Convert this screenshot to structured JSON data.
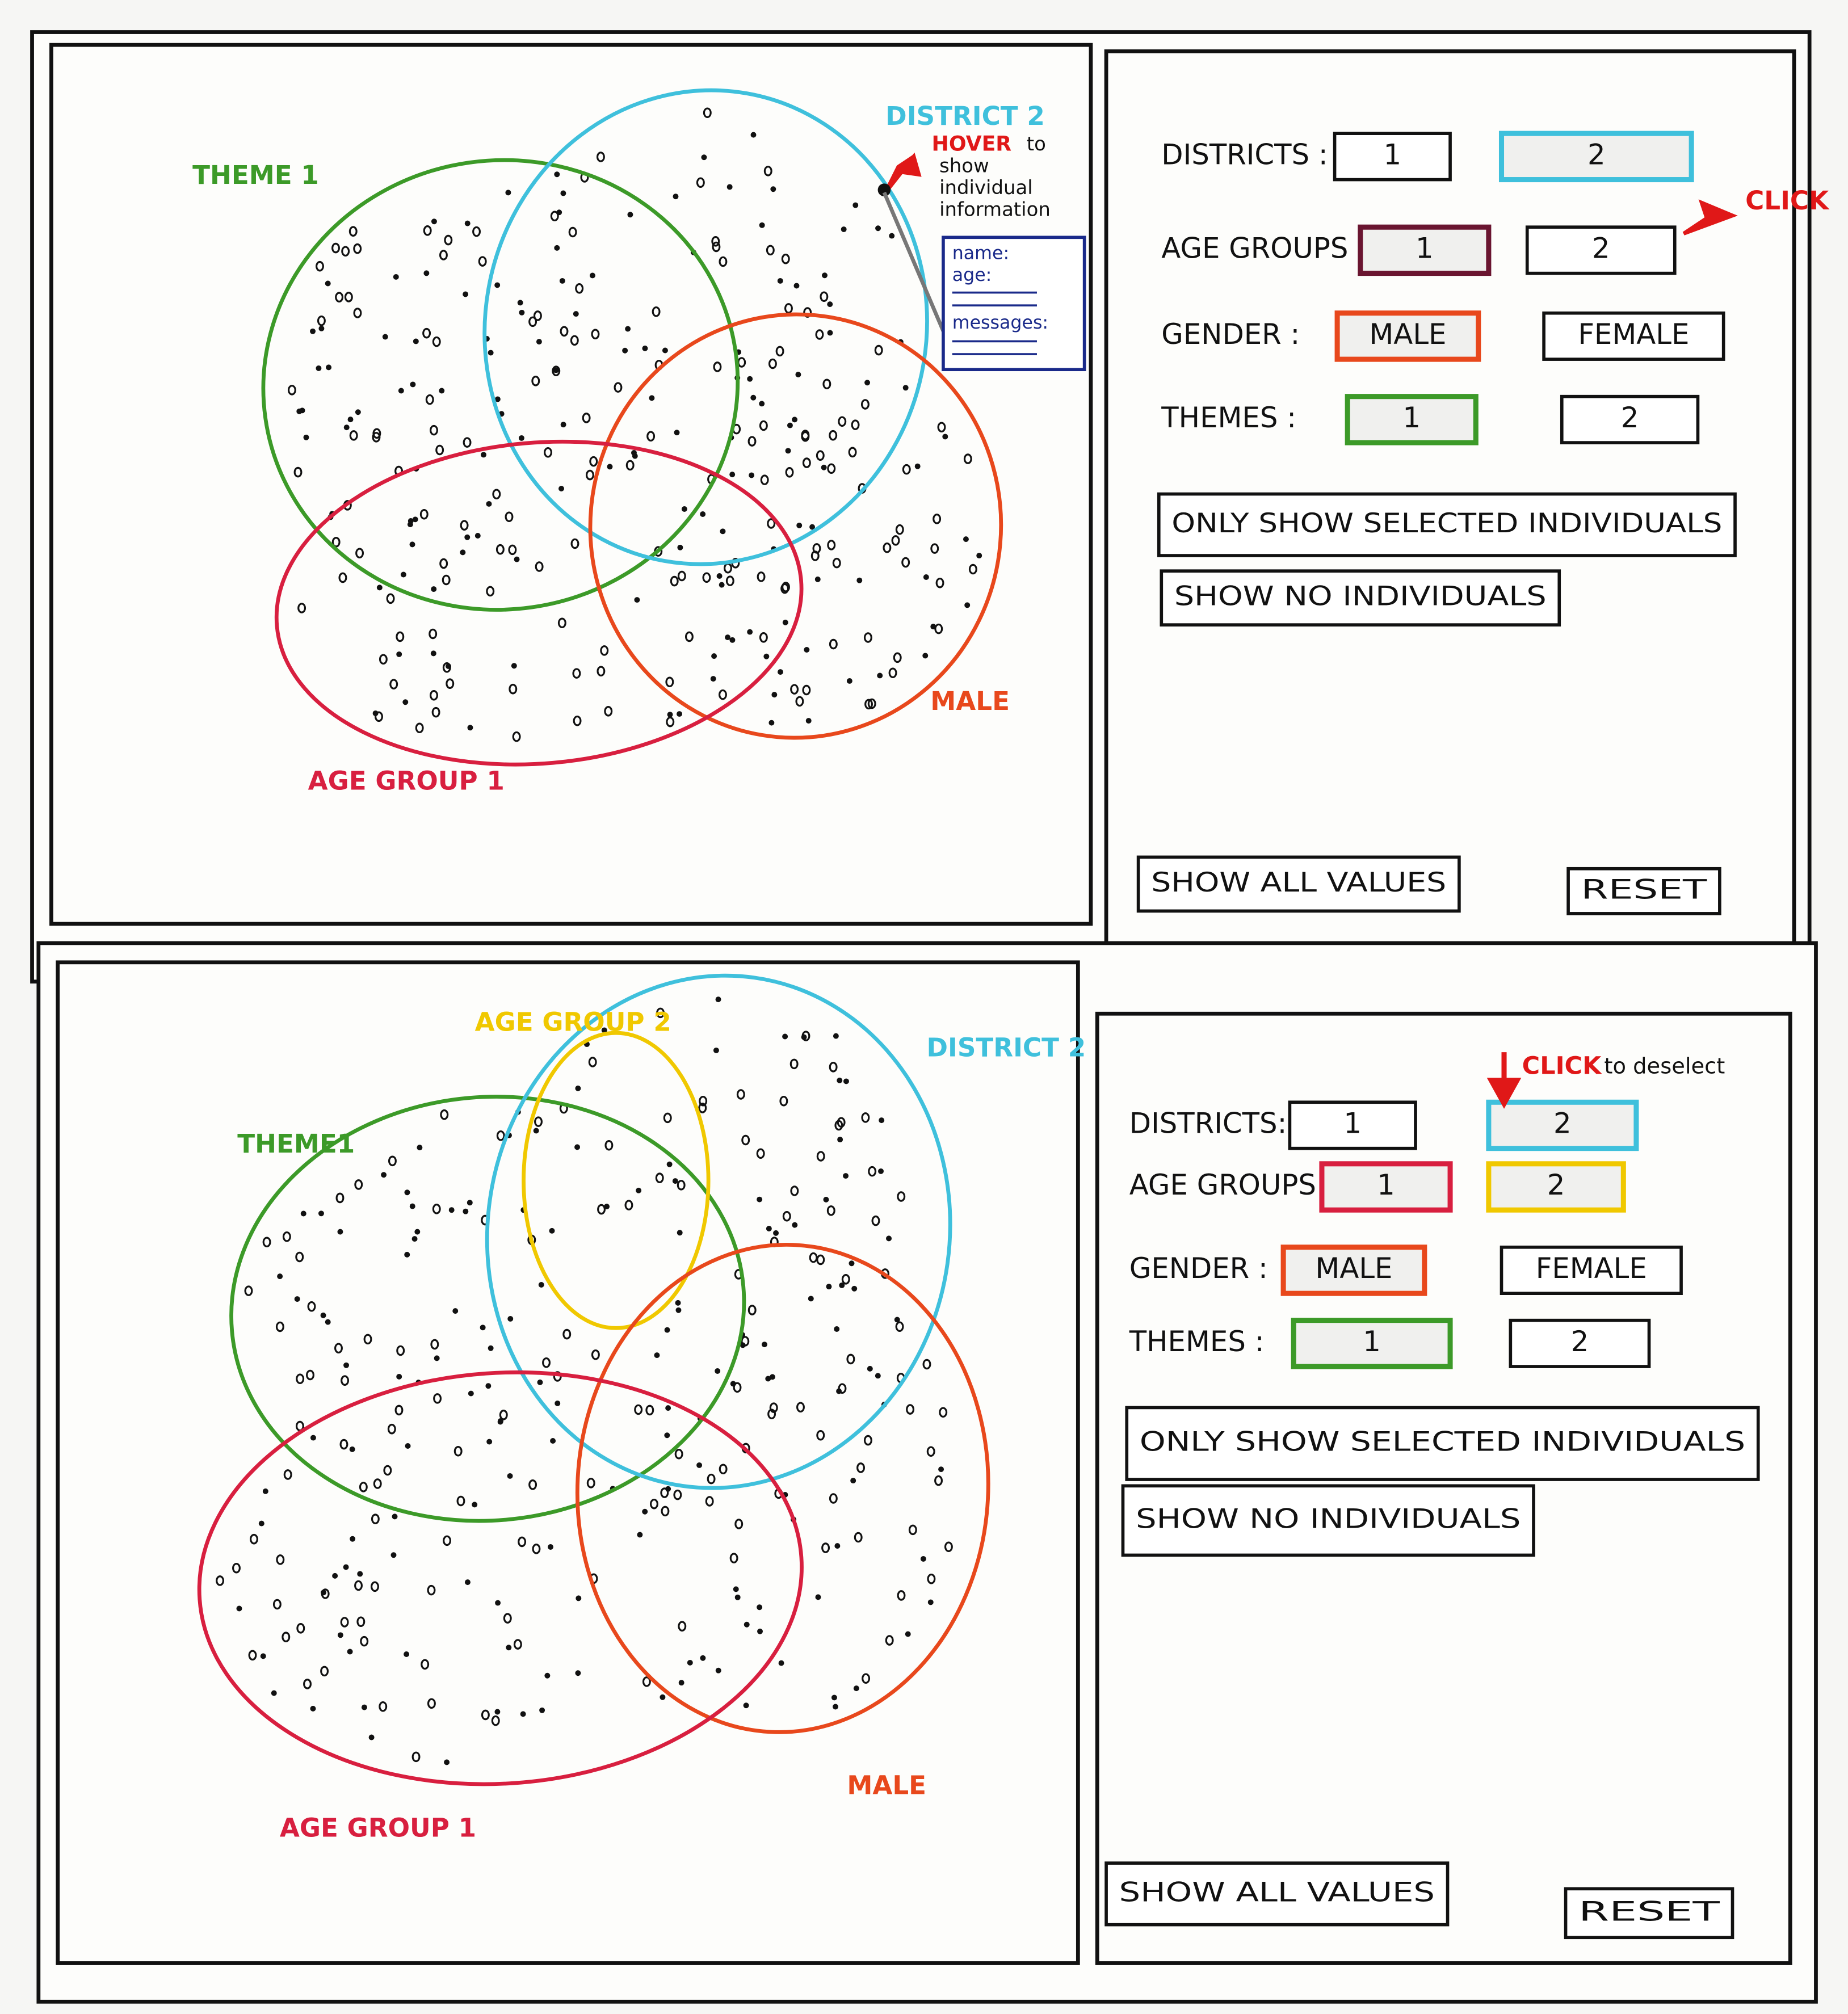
{
  "panels": [
    {
      "venn": {
        "sets": [
          {
            "label": "THEME 1",
            "color": "#3c9a28"
          },
          {
            "label": "DISTRICT 2",
            "color": "#3fc0dc"
          },
          {
            "label": "MALE",
            "color": "#e8481c"
          },
          {
            "label": "AGE GROUP 1",
            "color": "#d81f3f"
          }
        ]
      },
      "hover_note": {
        "action": "HOVER",
        "lines": [
          "to",
          "show",
          "individual",
          "information"
        ]
      },
      "tooltip": [
        "name:",
        "age:",
        "messages:"
      ],
      "click_note": {
        "action": "CLICK"
      },
      "controls": {
        "rows": [
          {
            "label": "DISTRICTS :",
            "buttons": [
              {
                "label": "1"
              },
              {
                "label": "2",
                "color": "#3fc0dc"
              }
            ]
          },
          {
            "label": "AGE GROUPS :",
            "buttons": [
              {
                "label": "1",
                "color": "#6a1530"
              },
              {
                "label": "2"
              }
            ]
          },
          {
            "label": "GENDER :",
            "buttons": [
              {
                "label": "MALE",
                "color": "#e8481c"
              },
              {
                "label": "FEMALE"
              }
            ]
          },
          {
            "label": "THEMES :",
            "buttons": [
              {
                "label": "1",
                "color": "#3c9a28"
              },
              {
                "label": "2"
              }
            ]
          }
        ],
        "actions": [
          "ONLY SHOW SELECTED INDIVIDUALS",
          "SHOW NO INDIVIDUALS"
        ],
        "footer": [
          "SHOW ALL VALUES",
          "RESET"
        ]
      }
    },
    {
      "venn": {
        "sets": [
          {
            "label": "THEME1",
            "color": "#3c9a28"
          },
          {
            "label": "DISTRICT 2",
            "color": "#3fc0dc"
          },
          {
            "label": "AGE GROUP 2",
            "color": "#f0c800"
          },
          {
            "label": "MALE",
            "color": "#e8481c"
          },
          {
            "label": "AGE GROUP 1",
            "color": "#d81f3f"
          }
        ]
      },
      "click_note": {
        "action": "CLICK",
        "text": "to deselect"
      },
      "controls": {
        "rows": [
          {
            "label": "DISTRICTS:",
            "buttons": [
              {
                "label": "1"
              },
              {
                "label": "2",
                "color": "#3fc0dc"
              }
            ]
          },
          {
            "label": "AGE GROUPS :",
            "buttons": [
              {
                "label": "1",
                "color": "#d81f3f"
              },
              {
                "label": "2",
                "color": "#f0c800"
              }
            ]
          },
          {
            "label": "GENDER :",
            "buttons": [
              {
                "label": "MALE",
                "color": "#e8481c"
              },
              {
                "label": "FEMALE"
              }
            ]
          },
          {
            "label": "THEMES :",
            "buttons": [
              {
                "label": "1",
                "color": "#3c9a28"
              },
              {
                "label": "2"
              }
            ]
          }
        ],
        "actions": [
          "ONLY SHOW SELECTED INDIVIDUALS",
          "SHOW NO INDIVIDUALS"
        ],
        "footer": [
          "SHOW ALL VALUES",
          "RESET"
        ]
      }
    }
  ]
}
